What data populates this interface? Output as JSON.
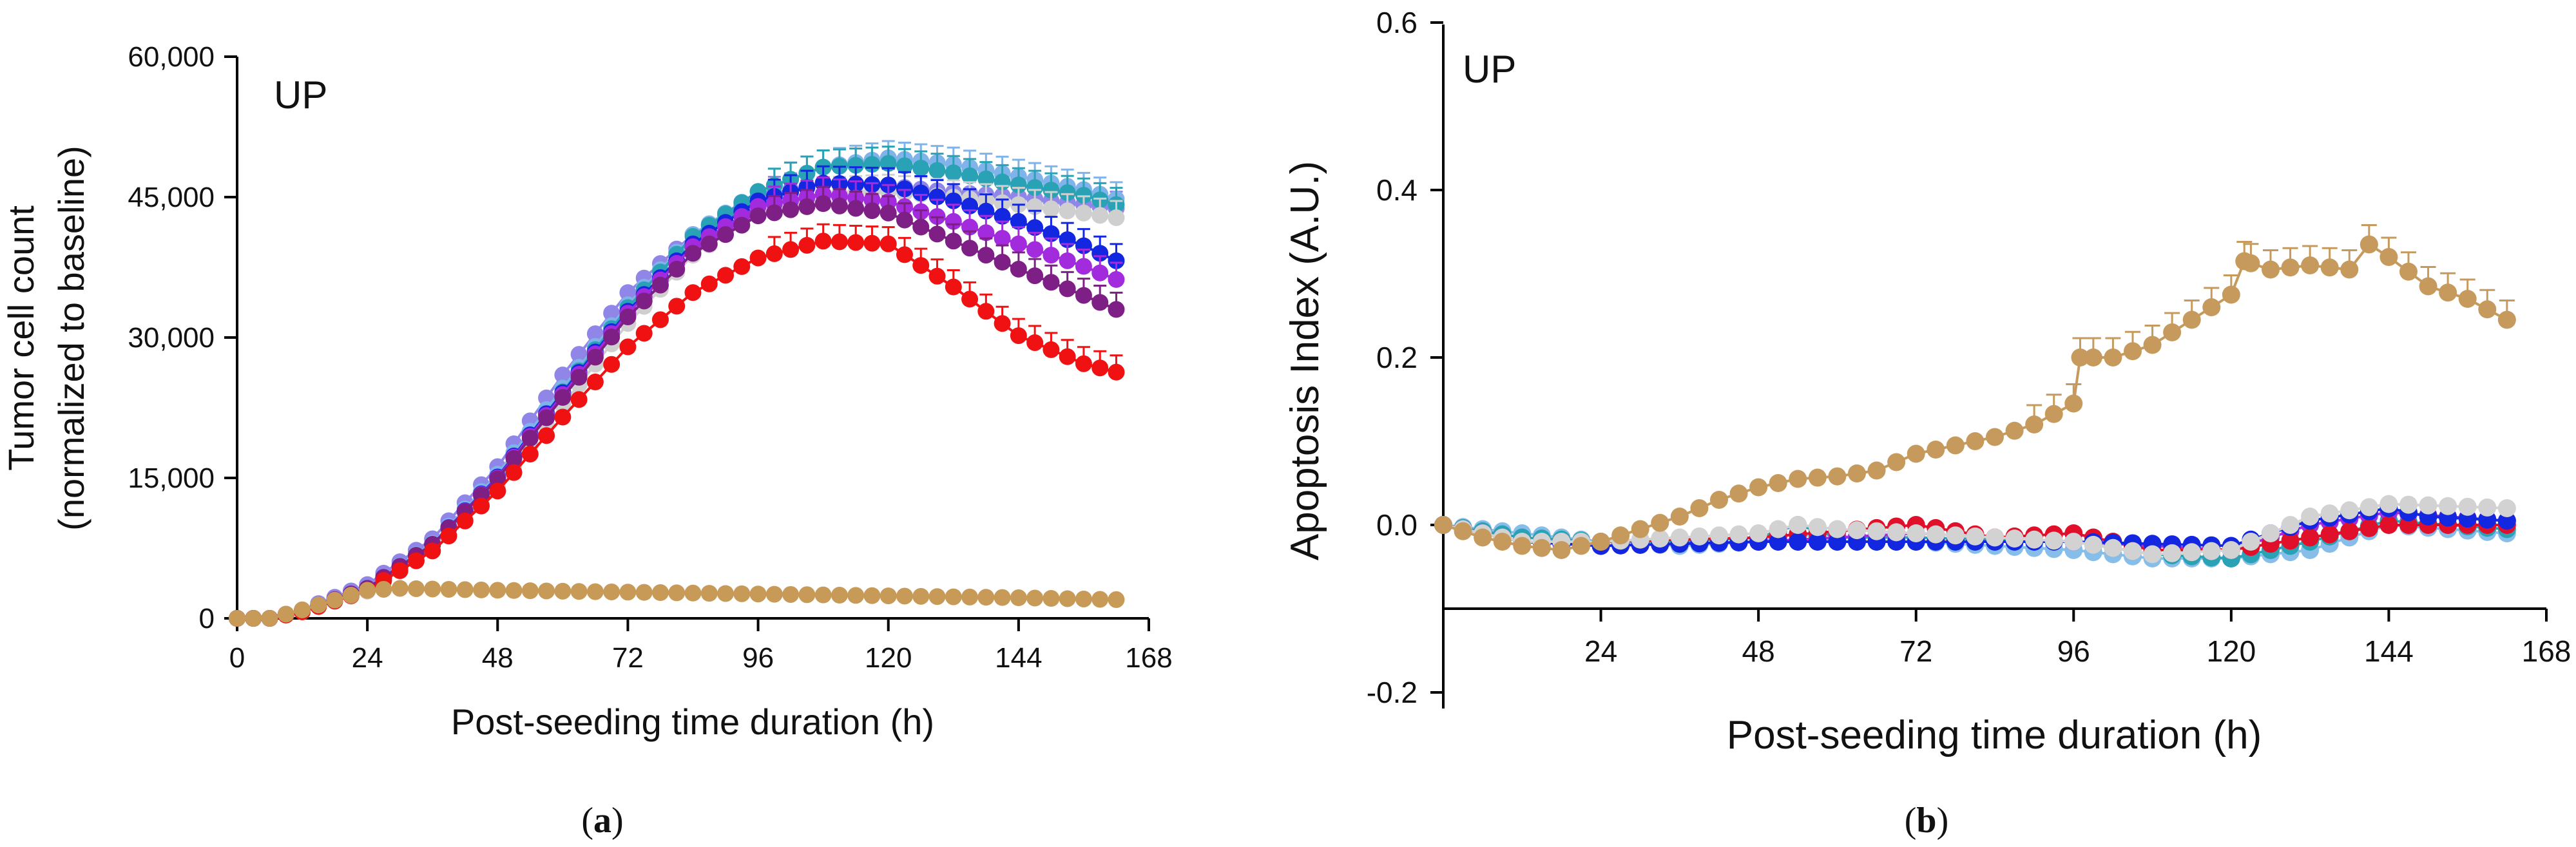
{
  "chart_data": [
    {
      "type": "scatter",
      "panel": "a",
      "caption_open": "(",
      "caption_letter": "a",
      "caption_close": ")",
      "annotation": "UP",
      "xlabel": "Post-seeding time duration (h)",
      "ylabel_line1": "Tumor cell count",
      "ylabel_line2": "(normalized to baseline)",
      "xlim": [
        0,
        168
      ],
      "ylim": [
        0,
        60000
      ],
      "xticks": [
        0,
        24,
        48,
        72,
        96,
        120,
        144,
        168
      ],
      "xtick_labels": [
        "0",
        "24",
        "48",
        "72",
        "96",
        "120",
        "144",
        "168"
      ],
      "yticks": [
        0,
        15000,
        30000,
        45000,
        60000
      ],
      "ytick_labels": [
        "0",
        "15,000",
        "30,000",
        "45,000",
        "60,000"
      ],
      "legend": "none",
      "series": [
        {
          "name": "lavender",
          "color": "#8f86e8",
          "key": [
            [
              0,
              0
            ],
            [
              6,
              0
            ],
            [
              12,
              900
            ],
            [
              24,
              3600
            ],
            [
              36,
              8500
            ],
            [
              48,
              16200
            ],
            [
              60,
              26000
            ],
            [
              72,
              34800
            ],
            [
              84,
              41000
            ],
            [
              96,
              45000
            ],
            [
              108,
              46500
            ],
            [
              120,
              46200
            ],
            [
              132,
              45500
            ],
            [
              144,
              45000
            ],
            [
              156,
              44200
            ],
            [
              162,
              43800
            ]
          ]
        },
        {
          "name": "light blue",
          "color": "#7fb3ea",
          "key": [
            [
              0,
              0
            ],
            [
              6,
              0
            ],
            [
              12,
              800
            ],
            [
              24,
              3200
            ],
            [
              36,
              8000
            ],
            [
              48,
              15400
            ],
            [
              60,
              24600
            ],
            [
              72,
              33500
            ],
            [
              84,
              41000
            ],
            [
              96,
              45600
            ],
            [
              108,
              48200
            ],
            [
              120,
              49200
            ],
            [
              132,
              48500
            ],
            [
              144,
              47200
            ],
            [
              156,
              45800
            ],
            [
              162,
              44800
            ]
          ]
        },
        {
          "name": "teal",
          "color": "#2aa2b5",
          "key": [
            [
              0,
              0
            ],
            [
              6,
              0
            ],
            [
              12,
              800
            ],
            [
              24,
              3200
            ],
            [
              36,
              7800
            ],
            [
              48,
              15000
            ],
            [
              60,
              24200
            ],
            [
              72,
              33200
            ],
            [
              84,
              40800
            ],
            [
              96,
              45600
            ],
            [
              108,
              48200
            ],
            [
              120,
              48600
            ],
            [
              132,
              47600
            ],
            [
              144,
              46300
            ],
            [
              156,
              45200
            ],
            [
              162,
              44200
            ]
          ]
        },
        {
          "name": "light gray",
          "color": "#cfcfcf",
          "key": [
            [
              0,
              0
            ],
            [
              6,
              0
            ],
            [
              12,
              700
            ],
            [
              24,
              2900
            ],
            [
              36,
              7200
            ],
            [
              48,
              14000
            ],
            [
              60,
              22800
            ],
            [
              72,
              31500
            ],
            [
              84,
              38800
            ],
            [
              96,
              43200
            ],
            [
              108,
              45300
            ],
            [
              120,
              45600
            ],
            [
              132,
              45000
            ],
            [
              144,
              44200
            ],
            [
              156,
              43300
            ],
            [
              162,
              42800
            ]
          ]
        },
        {
          "name": "blue",
          "color": "#1427e0",
          "key": [
            [
              0,
              0
            ],
            [
              6,
              0
            ],
            [
              12,
              800
            ],
            [
              24,
              3200
            ],
            [
              36,
              7900
            ],
            [
              48,
              15100
            ],
            [
              60,
              24100
            ],
            [
              72,
              32800
            ],
            [
              84,
              40000
            ],
            [
              96,
              44600
            ],
            [
              108,
              46500
            ],
            [
              120,
              46300
            ],
            [
              132,
              44600
            ],
            [
              144,
              42400
            ],
            [
              156,
              39800
            ],
            [
              162,
              38200
            ]
          ]
        },
        {
          "name": "violet",
          "color": "#a22bdd",
          "key": [
            [
              0,
              0
            ],
            [
              6,
              0
            ],
            [
              12,
              800
            ],
            [
              24,
              3200
            ],
            [
              36,
              7900
            ],
            [
              48,
              15000
            ],
            [
              60,
              23900
            ],
            [
              72,
              32600
            ],
            [
              84,
              39700
            ],
            [
              96,
              44000
            ],
            [
              108,
              45300
            ],
            [
              120,
              44500
            ],
            [
              132,
              42400
            ],
            [
              144,
              40000
            ],
            [
              156,
              37600
            ],
            [
              162,
              36200
            ]
          ]
        },
        {
          "name": "purple",
          "color": "#7d1f84",
          "key": [
            [
              0,
              0
            ],
            [
              6,
              0
            ],
            [
              12,
              800
            ],
            [
              24,
              3200
            ],
            [
              36,
              7900
            ],
            [
              48,
              14900
            ],
            [
              60,
              23600
            ],
            [
              72,
              32200
            ],
            [
              84,
              39000
            ],
            [
              96,
              43000
            ],
            [
              108,
              44300
            ],
            [
              120,
              43300
            ],
            [
              132,
              40300
            ],
            [
              144,
              37300
            ],
            [
              156,
              34500
            ],
            [
              162,
              33000
            ]
          ]
        },
        {
          "name": "red",
          "color": "#f01212",
          "key": [
            [
              0,
              0
            ],
            [
              6,
              0
            ],
            [
              12,
              700
            ],
            [
              24,
              3000
            ],
            [
              36,
              7200
            ],
            [
              48,
              13600
            ],
            [
              60,
              21500
            ],
            [
              72,
              29000
            ],
            [
              84,
              34800
            ],
            [
              96,
              38500
            ],
            [
              108,
              40300
            ],
            [
              120,
              40000
            ],
            [
              132,
              35400
            ],
            [
              144,
              30200
            ],
            [
              156,
              27200
            ],
            [
              162,
              26300
            ]
          ]
        },
        {
          "name": "tan",
          "color": "#c79a58",
          "key": [
            [
              0,
              0
            ],
            [
              6,
              0
            ],
            [
              12,
              900
            ],
            [
              24,
              3000
            ],
            [
              30,
              3200
            ],
            [
              48,
              3000
            ],
            [
              72,
              2800
            ],
            [
              96,
              2600
            ],
            [
              120,
              2400
            ],
            [
              144,
              2200
            ],
            [
              162,
              2000
            ]
          ]
        }
      ]
    },
    {
      "type": "scatter",
      "panel": "b",
      "caption_open": "(",
      "caption_letter": "b",
      "caption_close": ")",
      "annotation": "UP",
      "xlabel": "Post-seeding time duration (h)",
      "ylabel": "Apoptosis Index (A.U.)",
      "xlim": [
        0,
        168
      ],
      "ylim": [
        -0.2,
        0.6
      ],
      "x_axis_at_y": -0.1,
      "xticks": [
        24,
        48,
        72,
        96,
        120,
        144,
        168
      ],
      "xtick_labels": [
        "24",
        "48",
        "72",
        "96",
        "120",
        "144",
        "168"
      ],
      "yticks": [
        -0.2,
        0.0,
        0.2,
        0.4,
        0.6
      ],
      "ytick_labels": [
        "-0.2",
        "0.0",
        "0.2",
        "0.4",
        "0.6"
      ],
      "legend": "none",
      "series": [
        {
          "name": "light blue",
          "color": "#86bde9",
          "key": [
            [
              0,
              0
            ],
            [
              12,
              -0.01
            ],
            [
              24,
              -0.02
            ],
            [
              36,
              -0.025
            ],
            [
              48,
              -0.02
            ],
            [
              54,
              -0.01
            ],
            [
              60,
              -0.02
            ],
            [
              72,
              -0.02
            ],
            [
              96,
              -0.03
            ],
            [
              108,
              -0.04
            ],
            [
              120,
              -0.04
            ],
            [
              132,
              -0.03
            ],
            [
              144,
              0.0
            ],
            [
              162,
              -0.01
            ]
          ]
        },
        {
          "name": "teal",
          "color": "#2aa2b5",
          "key": [
            [
              0,
              0
            ],
            [
              12,
              -0.015
            ],
            [
              24,
              -0.02
            ],
            [
              36,
              -0.02
            ],
            [
              48,
              -0.015
            ],
            [
              54,
              0.0
            ],
            [
              60,
              -0.015
            ],
            [
              72,
              -0.015
            ],
            [
              96,
              -0.02
            ],
            [
              108,
              -0.035
            ],
            [
              120,
              -0.04
            ],
            [
              132,
              -0.02
            ],
            [
              144,
              0.005
            ],
            [
              162,
              -0.005
            ]
          ]
        },
        {
          "name": "purple",
          "color": "#a22bdd",
          "key": [
            [
              0,
              0
            ],
            [
              12,
              -0.02
            ],
            [
              24,
              -0.025
            ],
            [
              48,
              -0.02
            ],
            [
              72,
              -0.01
            ],
            [
              96,
              -0.02
            ],
            [
              120,
              -0.03
            ],
            [
              132,
              0.0
            ],
            [
              144,
              0.015
            ],
            [
              162,
              0.005
            ]
          ]
        },
        {
          "name": "red",
          "color": "#e0102a",
          "key": [
            [
              0,
              0
            ],
            [
              12,
              -0.02
            ],
            [
              24,
              -0.02
            ],
            [
              48,
              -0.015
            ],
            [
              72,
              0.0
            ],
            [
              84,
              -0.015
            ],
            [
              96,
              -0.01
            ],
            [
              108,
              -0.03
            ],
            [
              120,
              -0.03
            ],
            [
              144,
              0.0
            ],
            [
              162,
              0.0
            ]
          ]
        },
        {
          "name": "blue",
          "color": "#1427e0",
          "key": [
            [
              0,
              0
            ],
            [
              12,
              -0.02
            ],
            [
              24,
              -0.025
            ],
            [
              48,
              -0.02
            ],
            [
              72,
              -0.02
            ],
            [
              96,
              -0.02
            ],
            [
              120,
              -0.025
            ],
            [
              126,
              -0.01
            ],
            [
              132,
              0.005
            ],
            [
              144,
              0.02
            ],
            [
              150,
              0.01
            ],
            [
              162,
              0.005
            ]
          ]
        },
        {
          "name": "light gray",
          "color": "#d2d2d2",
          "key": [
            [
              0,
              0
            ],
            [
              12,
              -0.02
            ],
            [
              24,
              -0.02
            ],
            [
              48,
              -0.01
            ],
            [
              54,
              0.0
            ],
            [
              60,
              -0.005
            ],
            [
              72,
              -0.01
            ],
            [
              84,
              -0.015
            ],
            [
              96,
              -0.02
            ],
            [
              108,
              -0.035
            ],
            [
              120,
              -0.03
            ],
            [
              132,
              0.01
            ],
            [
              144,
              0.025
            ],
            [
              162,
              0.02
            ]
          ]
        },
        {
          "name": "tan",
          "color": "#c69a5c",
          "key": [
            [
              0,
              0
            ],
            [
              6,
              -0.015
            ],
            [
              12,
              -0.025
            ],
            [
              18,
              -0.03
            ],
            [
              24,
              -0.02
            ],
            [
              30,
              -0.005
            ],
            [
              36,
              0.01
            ],
            [
              42,
              0.03
            ],
            [
              48,
              0.045
            ],
            [
              54,
              0.055
            ],
            [
              60,
              0.058
            ],
            [
              66,
              0.065
            ],
            [
              72,
              0.085
            ],
            [
              78,
              0.095
            ],
            [
              84,
              0.105
            ],
            [
              90,
              0.12
            ],
            [
              96,
              0.145
            ],
            [
              97,
              0.2
            ],
            [
              102,
              0.2
            ],
            [
              108,
              0.215
            ],
            [
              114,
              0.245
            ],
            [
              120,
              0.275
            ],
            [
              122,
              0.315
            ],
            [
              126,
              0.305
            ],
            [
              132,
              0.31
            ],
            [
              138,
              0.305
            ],
            [
              141,
              0.335
            ],
            [
              144,
              0.32
            ],
            [
              150,
              0.285
            ],
            [
              156,
              0.27
            ],
            [
              162,
              0.245
            ]
          ]
        }
      ]
    }
  ]
}
